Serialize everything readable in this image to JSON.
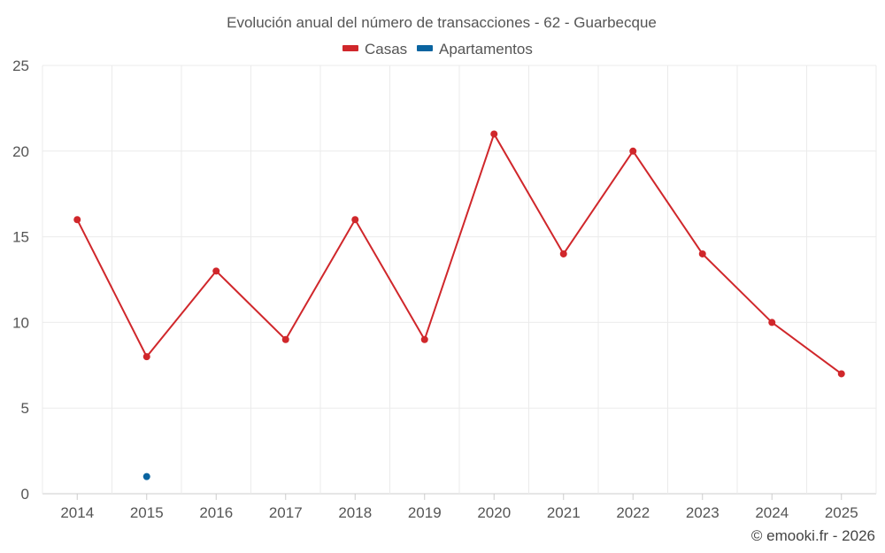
{
  "chart_data": {
    "type": "line",
    "title": "Evolución anual del número de transacciones - 62 - Guarbecque",
    "categories": [
      "2014",
      "2015",
      "2016",
      "2017",
      "2018",
      "2019",
      "2020",
      "2021",
      "2022",
      "2023",
      "2024",
      "2025"
    ],
    "series": [
      {
        "name": "Casas",
        "color": "#d0272b",
        "values": [
          16,
          8,
          13,
          9,
          16,
          9,
          21,
          14,
          20,
          14,
          10,
          7
        ]
      },
      {
        "name": "Apartamentos",
        "color": "#0a64a0",
        "values": [
          null,
          1,
          null,
          null,
          null,
          null,
          null,
          null,
          null,
          null,
          null,
          null
        ]
      }
    ],
    "ylim": [
      0,
      25
    ],
    "yticks": [
      "0",
      "5",
      "10",
      "15",
      "20",
      "25"
    ],
    "grid": true,
    "legend_position": "top-center"
  },
  "credit": "© emooki.fr - 2026"
}
